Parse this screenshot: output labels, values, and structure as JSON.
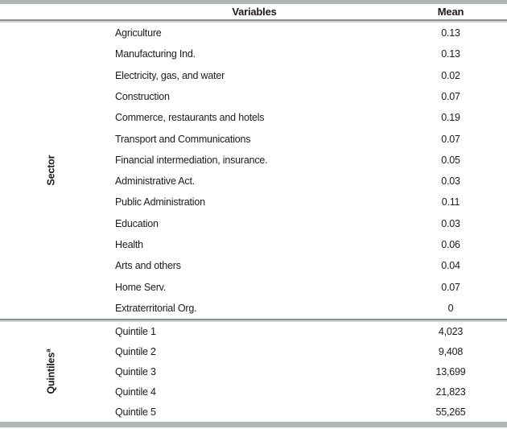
{
  "table": {
    "columns": {
      "variables": "Variables",
      "mean": "Mean"
    },
    "sections": [
      {
        "label": "Sector",
        "label_sup": "",
        "rows": [
          {
            "variable": "Agriculture",
            "mean": "0.13"
          },
          {
            "variable": "Manufacturing Ind.",
            "mean": "0.13"
          },
          {
            "variable": "Electricity, gas, and water",
            "mean": "0.02"
          },
          {
            "variable": "Construction",
            "mean": "0.07"
          },
          {
            "variable": "Commerce, restaurants and hotels",
            "mean": "0.19"
          },
          {
            "variable": "Transport and Communications",
            "mean": "0.07"
          },
          {
            "variable": "Financial intermediation, insurance.",
            "mean": "0.05"
          },
          {
            "variable": "Administrative Act.",
            "mean": "0.03"
          },
          {
            "variable": "Public Administration",
            "mean": "0.11"
          },
          {
            "variable": "Education",
            "mean": "0.03"
          },
          {
            "variable": "Health",
            "mean": "0.06"
          },
          {
            "variable": "Arts and others",
            "mean": "0.04"
          },
          {
            "variable": "Home Serv.",
            "mean": "0.07"
          },
          {
            "variable": "Extraterritorial Org.",
            "mean": "0"
          }
        ]
      },
      {
        "label": "Quintiles",
        "label_sup": "a",
        "rows": [
          {
            "variable": "Quintile 1",
            "mean": "4,023"
          },
          {
            "variable": "Quintile 2",
            "mean": "9,408"
          },
          {
            "variable": "Quintile 3",
            "mean": "13,699"
          },
          {
            "variable": "Quintile 4",
            "mean": "21,823"
          },
          {
            "variable": "Quintile 5",
            "mean": "55,265"
          }
        ]
      }
    ]
  },
  "colors": {
    "bar_gray": "#b3b6b7",
    "rule_dark": "#8b9093",
    "rule_light": "#d0d3d4",
    "text": "#1b1b1b"
  }
}
